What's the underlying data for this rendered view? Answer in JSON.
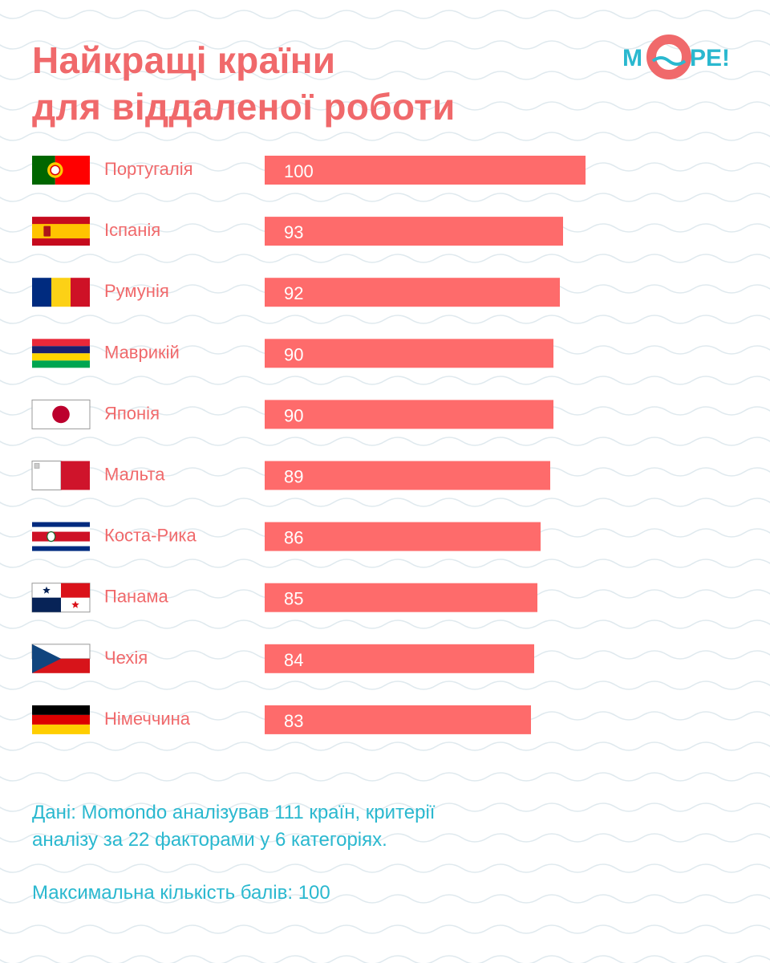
{
  "header": {
    "title_line1": "Найкращі країни",
    "title_line2": "для віддаленої роботи"
  },
  "logo": {
    "text_left": "М",
    "text_right": "РЕ!"
  },
  "colors": {
    "accent": "#f0696b",
    "bar": "#fe6b6b",
    "note": "#2ab8cf",
    "wave": "#dfe9ee"
  },
  "chart_data": {
    "type": "bar",
    "orientation": "horizontal",
    "categories": [
      "Португалія",
      "Іспанія",
      "Румунія",
      "Маврикій",
      "Японія",
      "Мальта",
      "Коста-Рика",
      "Панама",
      "Чехія",
      "Німеччина"
    ],
    "values": [
      100,
      93,
      92,
      90,
      90,
      89,
      86,
      85,
      84,
      83
    ],
    "flag_icons": [
      "portugal-flag-icon",
      "spain-flag-icon",
      "romania-flag-icon",
      "mauritius-flag-icon",
      "japan-flag-icon",
      "malta-flag-icon",
      "costa-rica-flag-icon",
      "panama-flag-icon",
      "czechia-flag-icon",
      "germany-flag-icon"
    ],
    "title": "",
    "xlabel": "",
    "ylabel": "",
    "xlim": [
      0,
      100
    ],
    "grid": false,
    "legend": "none"
  },
  "notes": {
    "line1": "Дані: Momondo аналізував 111 країн, критерії",
    "line2": "аналізу за 22 факторами у 6 категоріях.",
    "line3": "Максимальна кількість балів: 100"
  }
}
